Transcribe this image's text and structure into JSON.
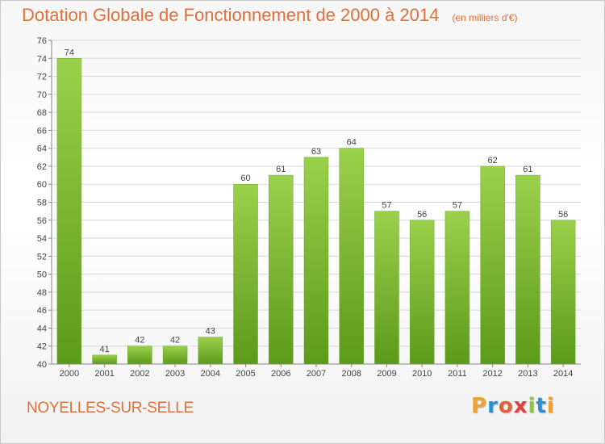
{
  "chart_data": {
    "type": "bar",
    "title": "Dotation Globale de Fonctionnement de 2000 à 2014",
    "subtitle": "(en milliers d'€)",
    "xlabel": "",
    "ylabel": "",
    "categories": [
      "2000",
      "2001",
      "2002",
      "2003",
      "2004",
      "2005",
      "2006",
      "2007",
      "2008",
      "2009",
      "2010",
      "2011",
      "2012",
      "2013",
      "2014"
    ],
    "values": [
      74,
      41,
      42,
      42,
      43,
      60,
      61,
      63,
      64,
      57,
      56,
      57,
      62,
      61,
      56
    ],
    "ylim": [
      40,
      76
    ],
    "yticks": [
      40,
      42,
      44,
      46,
      48,
      50,
      52,
      54,
      56,
      58,
      60,
      62,
      64,
      66,
      68,
      70,
      72,
      74,
      76
    ],
    "grid": true,
    "bar_color": "#8cc63f",
    "bar_color_dark": "#5c9a1a"
  },
  "footer": {
    "commune": "NOYELLES-SUR-SELLE",
    "logo_letters": [
      "P",
      "r",
      "o",
      "x",
      "i",
      "t",
      "i"
    ],
    "logo_colors": [
      "#f0a030",
      "#2a8fd0",
      "#e0603a",
      "#e04040",
      "#8cc63f",
      "#2a8fd0",
      "#f0a030"
    ]
  }
}
